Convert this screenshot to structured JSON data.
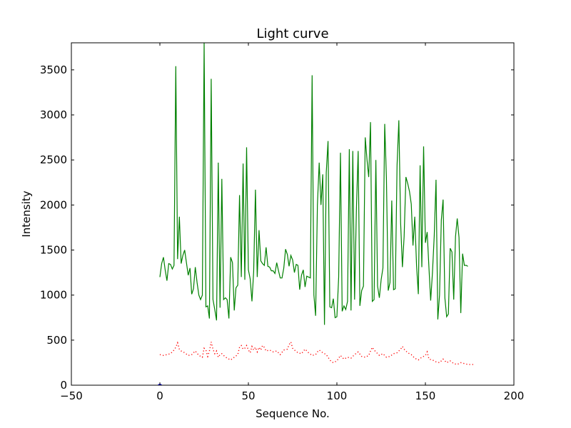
{
  "chart_data": {
    "type": "line",
    "title": "Light curve",
    "xlabel": "Sequence No.",
    "ylabel": "Intensity",
    "xlim": [
      -50,
      200
    ],
    "ylim": [
      0,
      3800
    ],
    "xticks": [
      -50,
      0,
      50,
      100,
      150,
      200
    ],
    "xtick_labels": [
      "−50",
      "0",
      "50",
      "100",
      "150",
      "200"
    ],
    "yticks": [
      0,
      500,
      1000,
      1500,
      2000,
      2500,
      3000,
      3500
    ],
    "ytick_labels": [
      "0",
      "500",
      "1000",
      "1500",
      "2000",
      "2500",
      "3000",
      "3500"
    ],
    "grid": false,
    "legend": "none",
    "series": [
      {
        "color": "#008000",
        "style": "solid",
        "points": [
          [
            0,
            1200
          ],
          [
            1,
            1350
          ],
          [
            2,
            1420
          ],
          [
            3,
            1280
          ],
          [
            4,
            1160
          ],
          [
            5,
            1350
          ],
          [
            6,
            1340
          ],
          [
            7,
            1290
          ],
          [
            8,
            1330
          ],
          [
            9,
            3540
          ],
          [
            10,
            1400
          ],
          [
            11,
            1870
          ],
          [
            12,
            1350
          ],
          [
            13,
            1440
          ],
          [
            14,
            1500
          ],
          [
            15,
            1360
          ],
          [
            16,
            1220
          ],
          [
            17,
            1300
          ],
          [
            18,
            1010
          ],
          [
            19,
            1070
          ],
          [
            20,
            1310
          ],
          [
            21,
            1140
          ],
          [
            22,
            1000
          ],
          [
            23,
            950
          ],
          [
            24,
            1000
          ],
          [
            25,
            3800
          ],
          [
            26,
            870
          ],
          [
            27,
            880
          ],
          [
            28,
            740
          ],
          [
            29,
            3400
          ],
          [
            30,
            950
          ],
          [
            31,
            840
          ],
          [
            32,
            720
          ],
          [
            33,
            2470
          ],
          [
            34,
            860
          ],
          [
            35,
            2290
          ],
          [
            36,
            950
          ],
          [
            37,
            970
          ],
          [
            38,
            950
          ],
          [
            39,
            740
          ],
          [
            40,
            1420
          ],
          [
            41,
            1360
          ],
          [
            42,
            830
          ],
          [
            43,
            1080
          ],
          [
            44,
            1110
          ],
          [
            45,
            2110
          ],
          [
            46,
            1200
          ],
          [
            47,
            2460
          ],
          [
            48,
            1170
          ],
          [
            49,
            2640
          ],
          [
            50,
            1280
          ],
          [
            51,
            1180
          ],
          [
            52,
            930
          ],
          [
            53,
            1260
          ],
          [
            54,
            2170
          ],
          [
            55,
            1200
          ],
          [
            56,
            1720
          ],
          [
            57,
            1380
          ],
          [
            58,
            1350
          ],
          [
            59,
            1330
          ],
          [
            60,
            1530
          ],
          [
            61,
            1320
          ],
          [
            62,
            1310
          ],
          [
            63,
            1270
          ],
          [
            64,
            1270
          ],
          [
            65,
            1240
          ],
          [
            66,
            1360
          ],
          [
            67,
            1270
          ],
          [
            68,
            1190
          ],
          [
            69,
            1190
          ],
          [
            70,
            1300
          ],
          [
            71,
            1510
          ],
          [
            72,
            1450
          ],
          [
            73,
            1320
          ],
          [
            74,
            1440
          ],
          [
            75,
            1390
          ],
          [
            76,
            1250
          ],
          [
            77,
            1340
          ],
          [
            78,
            1330
          ],
          [
            79,
            1060
          ],
          [
            80,
            1220
          ],
          [
            81,
            1280
          ],
          [
            82,
            1090
          ],
          [
            83,
            1210
          ],
          [
            84,
            1200
          ],
          [
            85,
            1190
          ],
          [
            86,
            3440
          ],
          [
            87,
            1000
          ],
          [
            88,
            770
          ],
          [
            89,
            2000
          ],
          [
            90,
            2470
          ],
          [
            91,
            2000
          ],
          [
            92,
            2340
          ],
          [
            93,
            670
          ],
          [
            94,
            2360
          ],
          [
            95,
            2710
          ],
          [
            96,
            870
          ],
          [
            97,
            860
          ],
          [
            98,
            960
          ],
          [
            99,
            750
          ],
          [
            100,
            760
          ],
          [
            101,
            1200
          ],
          [
            102,
            2580
          ],
          [
            103,
            820
          ],
          [
            104,
            880
          ],
          [
            105,
            840
          ],
          [
            106,
            930
          ],
          [
            107,
            2620
          ],
          [
            108,
            830
          ],
          [
            109,
            2600
          ],
          [
            110,
            950
          ],
          [
            111,
            1940
          ],
          [
            112,
            2600
          ],
          [
            113,
            880
          ],
          [
            114,
            1050
          ],
          [
            115,
            1100
          ],
          [
            116,
            2750
          ],
          [
            117,
            2500
          ],
          [
            118,
            2310
          ],
          [
            119,
            2920
          ],
          [
            120,
            930
          ],
          [
            121,
            950
          ],
          [
            122,
            2500
          ],
          [
            123,
            1100
          ],
          [
            124,
            970
          ],
          [
            125,
            1170
          ],
          [
            126,
            1300
          ],
          [
            127,
            2900
          ],
          [
            128,
            2300
          ],
          [
            129,
            1050
          ],
          [
            130,
            1140
          ],
          [
            131,
            2050
          ],
          [
            132,
            1060
          ],
          [
            133,
            1070
          ],
          [
            134,
            2440
          ],
          [
            135,
            2940
          ],
          [
            136,
            1800
          ],
          [
            137,
            1310
          ],
          [
            138,
            1650
          ],
          [
            139,
            2310
          ],
          [
            140,
            2240
          ],
          [
            141,
            2150
          ],
          [
            142,
            2010
          ],
          [
            143,
            1550
          ],
          [
            144,
            1870
          ],
          [
            145,
            1330
          ],
          [
            146,
            1010
          ],
          [
            147,
            2440
          ],
          [
            148,
            1310
          ],
          [
            149,
            2650
          ],
          [
            150,
            1580
          ],
          [
            151,
            1700
          ],
          [
            152,
            1300
          ],
          [
            153,
            940
          ],
          [
            154,
            1250
          ],
          [
            155,
            1660
          ],
          [
            156,
            2280
          ],
          [
            157,
            730
          ],
          [
            158,
            1000
          ],
          [
            159,
            1830
          ],
          [
            160,
            2060
          ],
          [
            161,
            970
          ],
          [
            162,
            760
          ],
          [
            163,
            790
          ],
          [
            164,
            1520
          ],
          [
            165,
            1480
          ],
          [
            166,
            950
          ],
          [
            167,
            1650
          ],
          [
            168,
            1850
          ],
          [
            169,
            1640
          ],
          [
            170,
            800
          ],
          [
            171,
            1460
          ],
          [
            172,
            1330
          ],
          [
            173,
            1330
          ],
          [
            174,
            1320
          ]
        ]
      },
      {
        "color": "#ff0000",
        "style": "dotted",
        "points": [
          [
            0,
            340
          ],
          [
            2,
            330
          ],
          [
            4,
            340
          ],
          [
            6,
            350
          ],
          [
            8,
            390
          ],
          [
            9,
            420
          ],
          [
            10,
            470
          ],
          [
            11,
            400
          ],
          [
            12,
            380
          ],
          [
            14,
            360
          ],
          [
            16,
            330
          ],
          [
            18,
            340
          ],
          [
            20,
            380
          ],
          [
            22,
            330
          ],
          [
            24,
            310
          ],
          [
            25,
            410
          ],
          [
            26,
            390
          ],
          [
            27,
            320
          ],
          [
            28,
            380
          ],
          [
            29,
            480
          ],
          [
            30,
            400
          ],
          [
            31,
            350
          ],
          [
            32,
            380
          ],
          [
            33,
            310
          ],
          [
            34,
            340
          ],
          [
            35,
            350
          ],
          [
            36,
            330
          ],
          [
            38,
            300
          ],
          [
            40,
            280
          ],
          [
            42,
            310
          ],
          [
            44,
            340
          ],
          [
            45,
            420
          ],
          [
            46,
            440
          ],
          [
            47,
            400
          ],
          [
            48,
            410
          ],
          [
            49,
            440
          ],
          [
            50,
            390
          ],
          [
            51,
            360
          ],
          [
            52,
            430
          ],
          [
            53,
            390
          ],
          [
            54,
            420
          ],
          [
            55,
            370
          ],
          [
            56,
            420
          ],
          [
            57,
            390
          ],
          [
            58,
            440
          ],
          [
            59,
            420
          ],
          [
            60,
            380
          ],
          [
            62,
            390
          ],
          [
            64,
            370
          ],
          [
            66,
            380
          ],
          [
            68,
            340
          ],
          [
            70,
            390
          ],
          [
            72,
            400
          ],
          [
            73,
            450
          ],
          [
            74,
            480
          ],
          [
            75,
            410
          ],
          [
            76,
            390
          ],
          [
            78,
            360
          ],
          [
            80,
            350
          ],
          [
            82,
            400
          ],
          [
            84,
            360
          ],
          [
            86,
            330
          ],
          [
            88,
            340
          ],
          [
            89,
            370
          ],
          [
            90,
            390
          ],
          [
            92,
            360
          ],
          [
            94,
            340
          ],
          [
            95,
            310
          ],
          [
            96,
            280
          ],
          [
            97,
            260
          ],
          [
            98,
            250
          ],
          [
            100,
            270
          ],
          [
            102,
            330
          ],
          [
            104,
            290
          ],
          [
            106,
            310
          ],
          [
            108,
            300
          ],
          [
            110,
            340
          ],
          [
            112,
            370
          ],
          [
            114,
            320
          ],
          [
            116,
            310
          ],
          [
            118,
            330
          ],
          [
            119,
            380
          ],
          [
            120,
            420
          ],
          [
            121,
            390
          ],
          [
            122,
            370
          ],
          [
            124,
            330
          ],
          [
            126,
            350
          ],
          [
            128,
            310
          ],
          [
            130,
            320
          ],
          [
            132,
            350
          ],
          [
            134,
            360
          ],
          [
            136,
            400
          ],
          [
            137,
            430
          ],
          [
            138,
            400
          ],
          [
            140,
            360
          ],
          [
            142,
            340
          ],
          [
            144,
            300
          ],
          [
            146,
            280
          ],
          [
            148,
            310
          ],
          [
            150,
            330
          ],
          [
            151,
            370
          ],
          [
            152,
            290
          ],
          [
            154,
            280
          ],
          [
            156,
            260
          ],
          [
            158,
            250
          ],
          [
            160,
            290
          ],
          [
            162,
            250
          ],
          [
            164,
            270
          ],
          [
            166,
            240
          ],
          [
            168,
            230
          ],
          [
            170,
            250
          ],
          [
            172,
            240
          ],
          [
            174,
            230
          ],
          [
            176,
            230
          ],
          [
            178,
            230
          ]
        ]
      },
      {
        "color": "#0000ff",
        "style": "solid",
        "points": [
          [
            -1,
            5
          ],
          [
            0,
            12
          ],
          [
            1,
            3
          ]
        ]
      }
    ]
  }
}
